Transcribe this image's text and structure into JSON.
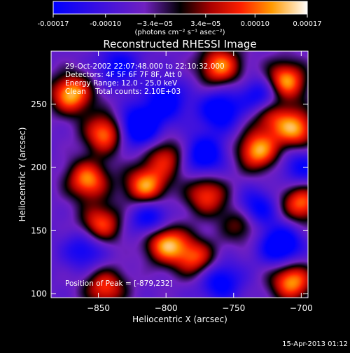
{
  "chart_data": {
    "type": "heatmap",
    "title": "Reconstructed RHESSI Image",
    "xlabel": "Heliocentric X (arcsec)",
    "ylabel": "Heliocentric Y (arcsec)",
    "xlim": [
      -885,
      -695
    ],
    "ylim": [
      97,
      292
    ],
    "x_ticks": [
      -850,
      -800,
      -750,
      -700
    ],
    "y_ticks": [
      100,
      150,
      200,
      250
    ],
    "grid": false,
    "colorbar": {
      "position": "top",
      "range": [
        -0.00017,
        0.00017
      ],
      "tick_values": [
        -0.00017,
        -0.0001,
        -3.4e-05,
        3.4e-05,
        0.0001,
        0.00017
      ],
      "tick_labels": [
        "-0.00017",
        "-0.00010",
        "−3.4e−05",
        "3.4e−05",
        "0.00010",
        "0.00017"
      ],
      "units_label": "(photons cm⁻² s⁻¹ asec⁻²)",
      "colormap": "heat (blue-purple-black-red-orange-yellow-white)"
    },
    "annotations": [
      "29-Oct-2002 22:07:48.000 to 22:10:32.000",
      "Detectors: 4F 5F 6F 7F 8F, Att 0",
      "Energy Range: 12.0 - 25.0 keV",
      "Clean    Total counts: 2.10E+03",
      "Position of Peak = [-879,232]"
    ],
    "peak": {
      "x": -879,
      "y": 232
    },
    "sources": [
      {
        "x": -870,
        "y": 258,
        "v": 0.95
      },
      {
        "x": -845,
        "y": 227,
        "v": 0.85
      },
      {
        "x": -858,
        "y": 190,
        "v": 0.85
      },
      {
        "x": -848,
        "y": 155,
        "v": 0.75
      },
      {
        "x": -815,
        "y": 185,
        "v": 0.9
      },
      {
        "x": -800,
        "y": 208,
        "v": 0.6
      },
      {
        "x": -770,
        "y": 178,
        "v": 0.7
      },
      {
        "x": -778,
        "y": 128,
        "v": 0.7
      },
      {
        "x": -800,
        "y": 140,
        "v": 0.95
      },
      {
        "x": -742,
        "y": 158,
        "v": 0.8
      },
      {
        "x": -732,
        "y": 213,
        "v": 0.9
      },
      {
        "x": -724,
        "y": 243,
        "v": 0.7
      },
      {
        "x": -712,
        "y": 268,
        "v": 0.95
      },
      {
        "x": -704,
        "y": 230,
        "v": 0.85
      },
      {
        "x": -700,
        "y": 172,
        "v": 0.8
      },
      {
        "x": -707,
        "y": 110,
        "v": 0.9
      },
      {
        "x": -760,
        "y": 280,
        "v": 0.85
      },
      {
        "x": -845,
        "y": 105,
        "v": 0.7
      },
      {
        "x": -820,
        "y": 232,
        "v": -0.9
      },
      {
        "x": -800,
        "y": 252,
        "v": -0.6
      },
      {
        "x": -760,
        "y": 245,
        "v": -0.7
      },
      {
        "x": -728,
        "y": 255,
        "v": -0.8
      },
      {
        "x": -772,
        "y": 210,
        "v": -0.7
      },
      {
        "x": -735,
        "y": 165,
        "v": -0.9
      },
      {
        "x": -812,
        "y": 160,
        "v": -0.6
      },
      {
        "x": -760,
        "y": 110,
        "v": -0.6
      },
      {
        "x": -860,
        "y": 135,
        "v": -0.5
      },
      {
        "x": -835,
        "y": 280,
        "v": -0.5
      },
      {
        "x": -715,
        "y": 138,
        "v": -0.8
      },
      {
        "x": -700,
        "y": 200,
        "v": -0.5
      }
    ]
  },
  "footer": {
    "timestamp": "15-Apr-2013 01:12"
  }
}
